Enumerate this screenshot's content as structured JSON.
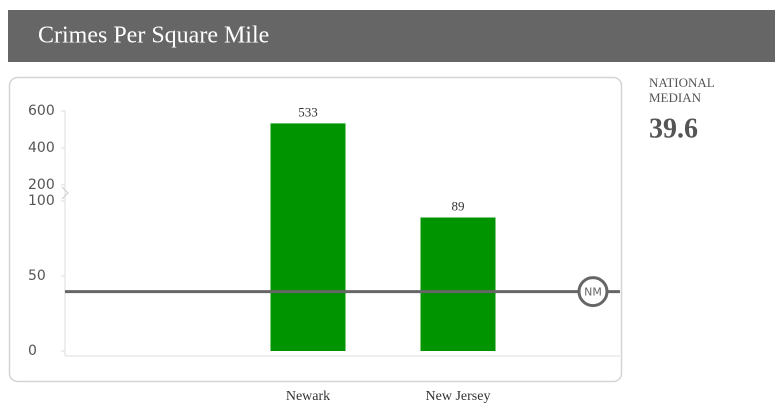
{
  "chart_data": {
    "type": "bar",
    "title": "Crimes Per Square Mile",
    "categories": [
      "Newark",
      "New Jersey"
    ],
    "values": [
      533,
      89
    ],
    "color": "#009400",
    "ylim": [
      0,
      600
    ],
    "yticks": [
      0,
      50,
      100,
      200,
      400,
      600
    ],
    "axis_break": [
      100,
      200
    ],
    "reference_line": {
      "label": "NATIONAL MEDIAN",
      "marker": "NM",
      "value": 39.6,
      "color": "#666666"
    }
  }
}
